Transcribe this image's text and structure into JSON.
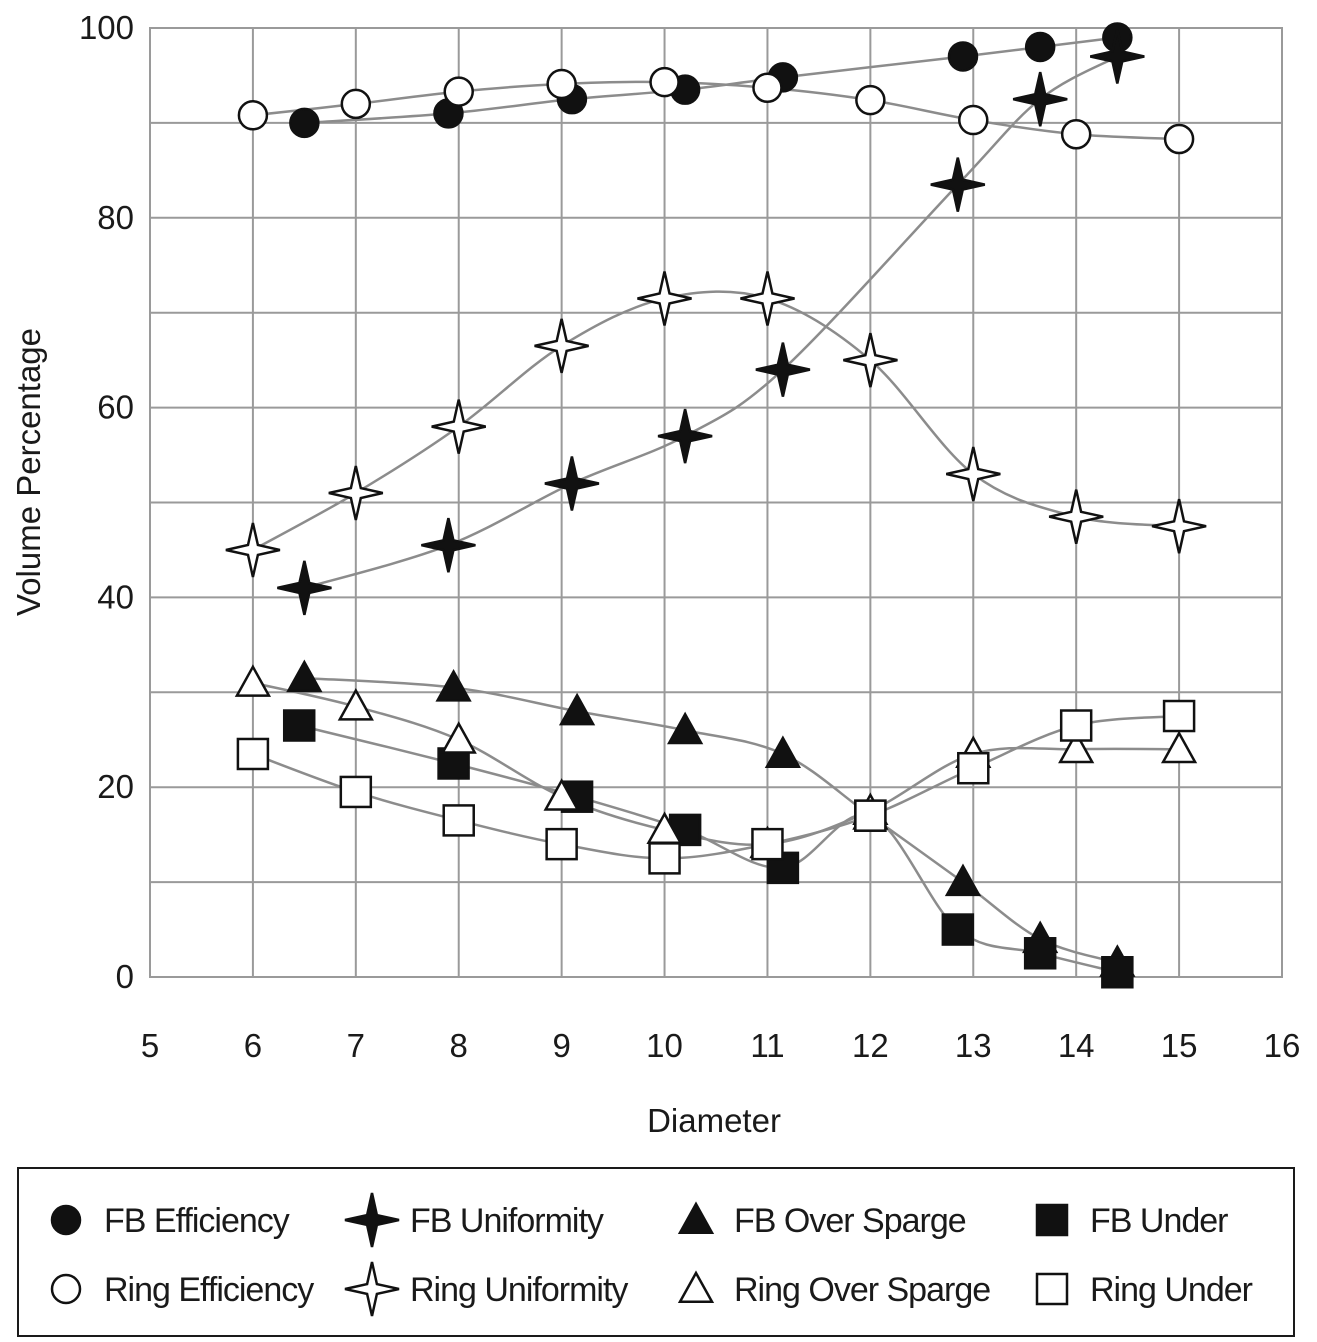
{
  "chart_data": {
    "type": "scatter",
    "xlabel": "Diameter",
    "ylabel": "Volume Percentage",
    "xlim": [
      5,
      16
    ],
    "ylim": [
      0,
      100
    ],
    "x_ticks": [
      "5",
      "6",
      "7",
      "8",
      "9",
      "10",
      "11",
      "12",
      "13",
      "14",
      "15",
      "16"
    ],
    "y_ticks": [
      "0",
      "20",
      "40",
      "60",
      "80",
      "100"
    ],
    "grid": true,
    "legend_position": "bottom",
    "series": [
      {
        "name": "FB Efficiency",
        "marker": "circle-filled",
        "x": [
          6.5,
          7.9,
          9.1,
          10.2,
          11.15,
          12.9,
          13.65,
          14.4
        ],
        "y": [
          90,
          91,
          92.5,
          93.5,
          94.8,
          97,
          98,
          99
        ]
      },
      {
        "name": "FB Uniformity",
        "marker": "star-filled",
        "x": [
          6.5,
          7.9,
          9.1,
          10.2,
          11.15,
          12.85,
          13.65,
          14.4
        ],
        "y": [
          41,
          45.5,
          52,
          57,
          64,
          83.5,
          92.5,
          97
        ]
      },
      {
        "name": "FB Over Sparge",
        "marker": "triangle-filled",
        "x": [
          6.5,
          7.95,
          9.15,
          10.2,
          11.15,
          12,
          12.9,
          13.65,
          14.4
        ],
        "y": [
          31.5,
          30.5,
          28,
          26,
          23.5,
          17,
          10,
          4,
          1.5
        ]
      },
      {
        "name": "FB Under",
        "marker": "square-filled",
        "x": [
          6.45,
          7.95,
          9.15,
          10.2,
          11.15,
          12,
          12.85,
          13.65,
          14.4
        ],
        "y": [
          26.5,
          22.5,
          19,
          15.5,
          11.5,
          17,
          5,
          2.5,
          0.5
        ]
      },
      {
        "name": "Ring Efficiency",
        "marker": "circle-open",
        "x": [
          6,
          7,
          8,
          9,
          10,
          11,
          12,
          13,
          14,
          15
        ],
        "y": [
          90.8,
          92,
          93.3,
          94.1,
          94.3,
          93.7,
          92.4,
          90.3,
          88.8,
          88.3
        ]
      },
      {
        "name": "Ring Uniformity",
        "marker": "star-open",
        "x": [
          6,
          7,
          8,
          9,
          10,
          11,
          12,
          13,
          14,
          15
        ],
        "y": [
          45,
          51,
          58,
          66.5,
          71.5,
          71.5,
          65,
          53,
          48.5,
          47.5
        ]
      },
      {
        "name": "Ring Over Sparge",
        "marker": "triangle-open",
        "x": [
          6,
          7,
          8,
          9,
          10,
          11,
          12,
          13,
          14,
          15
        ],
        "y": [
          31,
          28.5,
          25,
          19,
          15.5,
          14,
          17.5,
          23.5,
          24,
          24
        ]
      },
      {
        "name": "Ring Under",
        "marker": "square-open",
        "x": [
          6,
          7,
          8,
          9,
          10,
          11,
          12,
          13,
          14,
          15
        ],
        "y": [
          23.5,
          19.5,
          16.5,
          14,
          12.5,
          14,
          17,
          22,
          26.5,
          27.5
        ]
      }
    ]
  }
}
